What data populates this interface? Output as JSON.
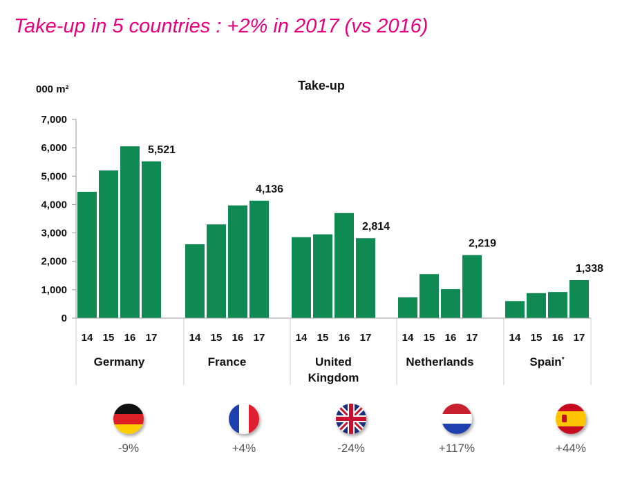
{
  "headline": {
    "main": "Take-up in 5 countries : +2% in 2017",
    "tail": " (vs 2016)"
  },
  "colors": {
    "headline": "#e6007e",
    "bar": "#0f8a53"
  },
  "chart_data": {
    "type": "bar",
    "title": "Take-up",
    "ylabel": "000 m²",
    "ylim": [
      0,
      7000
    ],
    "yticks": [
      "0",
      "1,000",
      "2,000",
      "3,000",
      "4,000",
      "5,000",
      "6,000",
      "7,000"
    ],
    "grid": false,
    "year_labels": [
      "14",
      "15",
      "16",
      "17"
    ],
    "groups": [
      {
        "country": "Germany",
        "values": [
          4450,
          5200,
          6050,
          5521
        ],
        "label_2017": "5,521",
        "change": "-9%",
        "flag": "germany-flag-icon"
      },
      {
        "country": "France",
        "values": [
          2600,
          3300,
          3970,
          4136
        ],
        "label_2017": "4,136",
        "change": "+4%",
        "flag": "france-flag-icon"
      },
      {
        "country": "United Kingdom",
        "values": [
          2850,
          2950,
          3700,
          2814
        ],
        "label_2017": "2,814",
        "change": "-24%",
        "flag": "uk-flag-icon"
      },
      {
        "country": "Netherlands",
        "values": [
          730,
          1550,
          1020,
          2219
        ],
        "label_2017": "2,219",
        "change": "+117%",
        "flag": "netherlands-flag-icon"
      },
      {
        "country": "Spain",
        "values": [
          600,
          880,
          920,
          1338
        ],
        "label_2017": "1,338",
        "change": "+44%",
        "flag": "spain-flag-icon",
        "footnote": "*"
      }
    ]
  }
}
